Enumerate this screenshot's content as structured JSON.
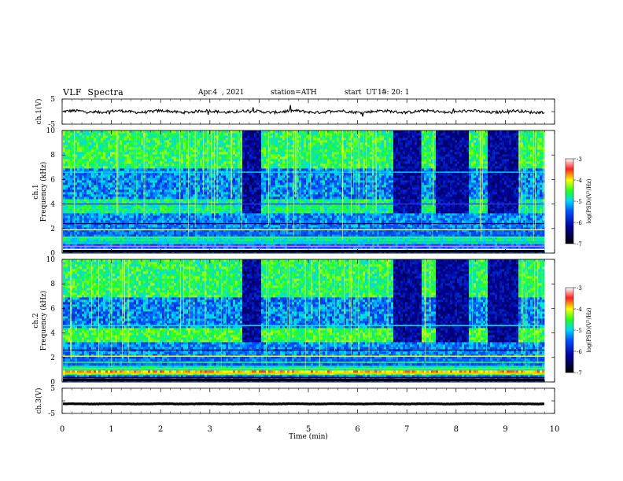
{
  "header": {
    "title": "VLF  Spectra",
    "date": "Apr.4  , 2021",
    "station": "station=ATH",
    "start_label": "start  UT  =",
    "start_time": "15: 20: 1"
  },
  "chart_data": [
    {
      "type": "line",
      "ylabel": "ch.1(V)",
      "ylim": [
        -5,
        5
      ],
      "yticks": [
        "5",
        "-5"
      ],
      "xlim": [
        0,
        10
      ],
      "mean_value": 0,
      "trace_color": "#000000"
    },
    {
      "type": "heatmap",
      "ylabel": [
        "ch.1",
        "Frequency  (kHz)"
      ],
      "ylim": [
        0,
        10
      ],
      "yticks": [
        "0",
        "2",
        "4",
        "6",
        "8",
        "10"
      ],
      "xlim": [
        0,
        10
      ],
      "colorbar": {
        "label": "log(PSD)(V²/Hz)",
        "range": [
          -7,
          -3
        ],
        "ticks": [
          "-3",
          "-4",
          "-5",
          "-6",
          "-7"
        ]
      },
      "gap_intervals_min": [
        [
          3.65,
          4.05
        ],
        [
          6.75,
          7.3
        ],
        [
          7.6,
          8.3
        ],
        [
          8.65,
          9.3
        ]
      ]
    },
    {
      "type": "heatmap",
      "ylabel": [
        "ch.2",
        "Frequency  (kHz)"
      ],
      "ylim": [
        0,
        10
      ],
      "yticks": [
        "0",
        "2",
        "4",
        "6",
        "8",
        "10"
      ],
      "xlim": [
        0,
        10
      ],
      "colorbar": {
        "label": "log(PSD)(V²/Hz)",
        "range": [
          -7,
          -3
        ],
        "ticks": [
          "-3",
          "-4",
          "-5",
          "-6",
          "-7"
        ]
      },
      "gap_intervals_min": [
        [
          3.65,
          4.05
        ],
        [
          6.75,
          7.3
        ],
        [
          7.6,
          8.3
        ],
        [
          8.65,
          9.3
        ]
      ]
    },
    {
      "type": "line",
      "ylabel": "ch.3(V)",
      "ylim": [
        -5,
        5
      ],
      "yticks": [
        "5",
        "-5"
      ],
      "xlim": [
        0,
        10
      ],
      "mean_value": -1.2,
      "trace_color": "#000000"
    }
  ],
  "x_axis": {
    "label": "Time  (min)",
    "ticks": [
      "0",
      "1",
      "2",
      "3",
      "4",
      "5",
      "6",
      "7",
      "8",
      "9",
      "10"
    ]
  }
}
